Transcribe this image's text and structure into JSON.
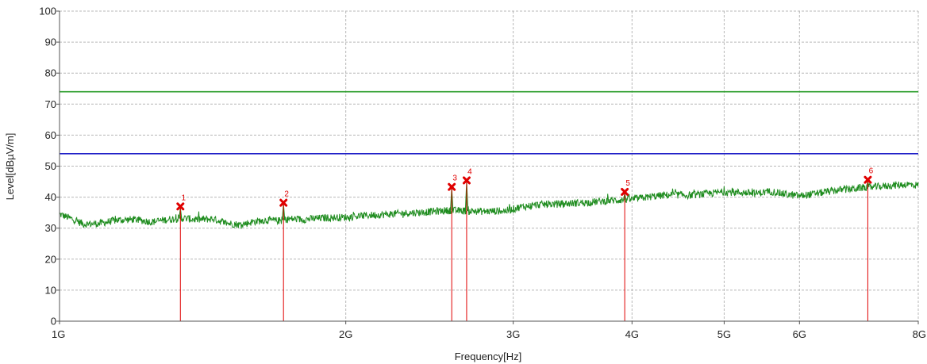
{
  "chart_data": {
    "type": "line",
    "title": "",
    "xlabel": "Frequency[Hz]",
    "ylabel": "Level[dBµV/m]",
    "x_scale": "log",
    "xlim_hz": [
      1000000000,
      8000000000
    ],
    "ylim": [
      0,
      100
    ],
    "grid": true,
    "x_ticks": [
      {
        "value_hz": 1000000000,
        "label": "1G"
      },
      {
        "value_hz": 2000000000,
        "label": "2G"
      },
      {
        "value_hz": 3000000000,
        "label": "3G"
      },
      {
        "value_hz": 4000000000,
        "label": "4G"
      },
      {
        "value_hz": 5000000000,
        "label": "5G"
      },
      {
        "value_hz": 6000000000,
        "label": "6G"
      },
      {
        "value_hz": 8000000000,
        "label": "8G"
      }
    ],
    "y_ticks": [
      0,
      10,
      20,
      30,
      40,
      50,
      60,
      70,
      80,
      90,
      100
    ],
    "limit_lines": [
      {
        "level_db": 74,
        "color": "#2a9d2a"
      },
      {
        "level_db": 54,
        "color": "#1f1fc8"
      }
    ],
    "trace": {
      "color": "#1e8c1e",
      "points": [
        [
          1000000000,
          34.5
        ],
        [
          1030000000,
          33.0
        ],
        [
          1060000000,
          31.3
        ],
        [
          1100000000,
          31.5
        ],
        [
          1150000000,
          32.6
        ],
        [
          1200000000,
          32.8
        ],
        [
          1250000000,
          32.0
        ],
        [
          1300000000,
          32.8
        ],
        [
          1350000000,
          33.2
        ],
        [
          1400000000,
          32.7
        ],
        [
          1450000000,
          33.0
        ],
        [
          1500000000,
          31.6
        ],
        [
          1550000000,
          31.1
        ],
        [
          1600000000,
          32.1
        ],
        [
          1650000000,
          32.6
        ],
        [
          1700000000,
          32.4
        ],
        [
          1750000000,
          33.0
        ],
        [
          1800000000,
          32.8
        ],
        [
          1900000000,
          33.3
        ],
        [
          2000000000,
          33.5
        ],
        [
          2100000000,
          34.1
        ],
        [
          2200000000,
          34.4
        ],
        [
          2300000000,
          34.8
        ],
        [
          2400000000,
          35.1
        ],
        [
          2500000000,
          35.5
        ],
        [
          2560000000,
          35.7
        ],
        [
          2650000000,
          35.6
        ],
        [
          2800000000,
          35.4
        ],
        [
          2950000000,
          35.6
        ],
        [
          3050000000,
          36.8
        ],
        [
          3200000000,
          37.6
        ],
        [
          3400000000,
          37.9
        ],
        [
          3600000000,
          38.3
        ],
        [
          3800000000,
          38.9
        ],
        [
          4000000000,
          39.3
        ],
        [
          4200000000,
          40.2
        ],
        [
          4400000000,
          40.8
        ],
        [
          4600000000,
          40.6
        ],
        [
          4800000000,
          41.1
        ],
        [
          5000000000,
          41.7
        ],
        [
          5200000000,
          41.5
        ],
        [
          5400000000,
          41.2
        ],
        [
          5600000000,
          41.9
        ],
        [
          5800000000,
          40.9
        ],
        [
          6000000000,
          40.4
        ],
        [
          6200000000,
          41.0
        ],
        [
          6400000000,
          41.7
        ],
        [
          6600000000,
          42.3
        ],
        [
          6800000000,
          42.6
        ],
        [
          7000000000,
          43.1
        ],
        [
          7200000000,
          43.3
        ],
        [
          7400000000,
          43.6
        ],
        [
          7600000000,
          43.9
        ],
        [
          7800000000,
          44.1
        ],
        [
          8000000000,
          43.8
        ]
      ]
    },
    "markers": [
      {
        "label": "1",
        "freq_hz": 1340000000,
        "level_db": 37.0
      },
      {
        "label": "2",
        "freq_hz": 1720000000,
        "level_db": 38.2
      },
      {
        "label": "3",
        "freq_hz": 2585000000,
        "level_db": 43.3
      },
      {
        "label": "4",
        "freq_hz": 2680000000,
        "level_db": 45.4
      },
      {
        "label": "5",
        "freq_hz": 3930000000,
        "level_db": 41.7
      },
      {
        "label": "6",
        "freq_hz": 7080000000,
        "level_db": 45.6
      }
    ],
    "marker_color": "#e00000"
  }
}
